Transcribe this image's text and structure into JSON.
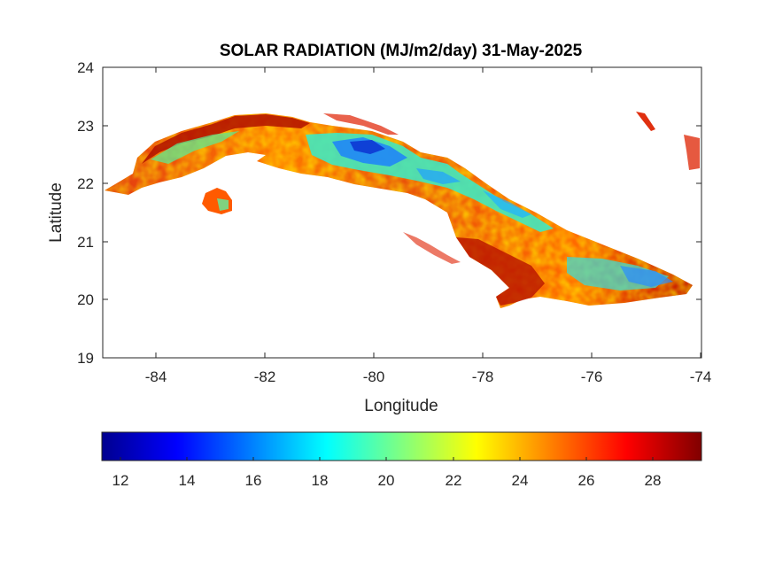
{
  "chart_data": {
    "type": "heatmap",
    "title": "SOLAR RADIATION (MJ/m2/day) 31-May-2025",
    "xlabel": "Longitude",
    "ylabel": "Latitude",
    "xlim": [
      -85,
      -74
    ],
    "ylim": [
      19,
      24
    ],
    "x_ticks": [
      "-84",
      "-82",
      "-80",
      "-78",
      "-76",
      "-74"
    ],
    "y_ticks": [
      "19",
      "20",
      "21",
      "22",
      "23",
      "24"
    ],
    "colorbar": {
      "colormap": "jet",
      "range": [
        11.5,
        29.4
      ],
      "ticks": [
        "12",
        "14",
        "16",
        "18",
        "20",
        "22",
        "24",
        "26",
        "28"
      ]
    },
    "grid": false
  }
}
